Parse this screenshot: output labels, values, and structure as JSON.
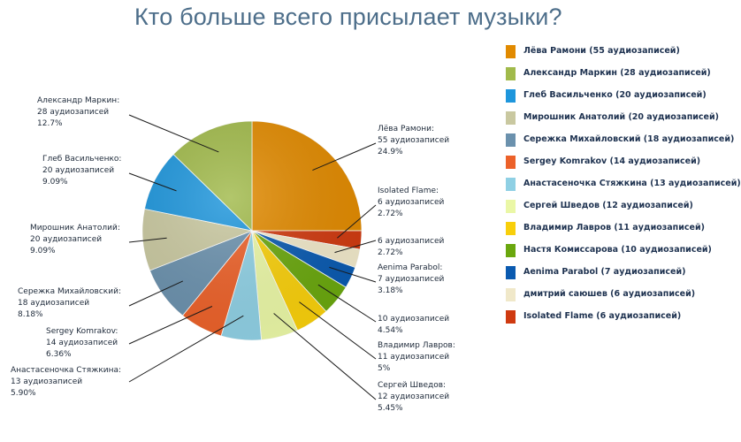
{
  "chart_data": {
    "type": "pie",
    "title": "Кто больше всего присылает музыки?",
    "slices": [
      {
        "name": "Лёва Рамони",
        "value": 55,
        "percent": "24.9%",
        "color": "#e18a00",
        "legend": "Лёва Рамони (55 аудиозаписей)",
        "callout": [
          "Лёва Рамони:",
          "55 аудиозаписей",
          "24.9%"
        ]
      },
      {
        "name": "Isolated Flame",
        "value": 6,
        "percent": "2.72%",
        "color": "#cf3a10",
        "legend": "Isolated Flame (6 аудиозаписей)",
        "callout": [
          "Isolated Flame:",
          "6 аудиозаписей",
          "2.72%"
        ]
      },
      {
        "name": "дмитрий саюшев",
        "value": 6,
        "percent": "2.72%",
        "color": "#f0e8c9",
        "legend": "дмитрий саюшев (6 аудиозаписей)",
        "callout": [
          "",
          "6 аудиозаписей",
          "2.72%"
        ]
      },
      {
        "name": "Aenima Parabol",
        "value": 7,
        "percent": "3.18%",
        "color": "#0a5ab0",
        "legend": "Aenima Parabol (7 аудиозаписей)",
        "callout": [
          "Aenima Parabol:",
          "7 аудиозаписей",
          "3.18%"
        ]
      },
      {
        "name": "Настя Комиссарова",
        "value": 10,
        "percent": "4.54%",
        "color": "#6aa70e",
        "legend": "Настя Комиссарова (10 аудиозаписей)",
        "callout": [
          "",
          "10 аудиозаписей",
          "4.54%"
        ]
      },
      {
        "name": "Владимир Лавров",
        "value": 11,
        "percent": "5%",
        "color": "#f8cf0b",
        "legend": "Владимир Лавров (11 аудиозаписей)",
        "callout": [
          "Владимир Лавров:",
          "11 аудиозаписей",
          "5%"
        ]
      },
      {
        "name": "Сергей Шведов",
        "value": 12,
        "percent": "5.45%",
        "color": "#eaf7a6",
        "legend": "Сергей Шведов (12 аудиозаписей)",
        "callout": [
          "Сергей Шведов:",
          "12 аудиозаписей",
          "5.45%"
        ]
      },
      {
        "name": "Анастасеночка Стяжкина",
        "value": 13,
        "percent": "5.90%",
        "color": "#8fd0e4",
        "legend": "Анастасеночка Стяжкина (13 аудиозаписей)",
        "callout": [
          "Анастасеночка Стяжкина:",
          "13 аудиозаписей",
          "5.90%"
        ]
      },
      {
        "name": "Sergey Komrakov",
        "value": 14,
        "percent": "6.36%",
        "color": "#ec6129",
        "legend": "Sergey Komrakov (14 аудиозаписей)",
        "callout": [
          "Sergey Komrakov:",
          "14 аудиозаписей",
          "6.36%"
        ]
      },
      {
        "name": "Сережка Михайловский",
        "value": 18,
        "percent": "8.18%",
        "color": "#6b91ad",
        "legend": "Сережка Михайловский (18 аудиозаписей)",
        "callout": [
          "Сережка Михайловский:",
          "18 аудиозаписей",
          "8.18%"
        ]
      },
      {
        "name": "Мирошник Анатолий",
        "value": 20,
        "percent": "9.09%",
        "color": "#c9c8a0",
        "legend": "Мирошник Анатолий (20 аудиозаписей)",
        "callout": [
          "Мирошник Анатолий:",
          "20 аудиозаписей",
          "9.09%"
        ]
      },
      {
        "name": "Глеб Васильченко",
        "value": 20,
        "percent": "9.09%",
        "color": "#1e96dc",
        "legend": "Глеб Васильченко (20 аудиозаписей)",
        "callout": [
          "Глеб Васильченко:",
          "20 аудиозаписей",
          "9.09%"
        ]
      },
      {
        "name": "Александр Маркин",
        "value": 28,
        "percent": "12.7%",
        "color": "#a1ba4b",
        "legend": "Александр Маркин (28 аудиозаписей)",
        "callout": [
          "Александр Маркин:",
          "28 аудиозаписей",
          "12.7%"
        ]
      }
    ],
    "legend_order": [
      "Лёва Рамони",
      "Александр Маркин",
      "Глеб Васильченко",
      "Мирошник Анатолий",
      "Сережка Михайловский",
      "Sergey Komrakov",
      "Анастасеночка Стяжкина",
      "Сергей Шведов",
      "Владимир Лавров",
      "Настя Комиссарова",
      "Aenima Parabol",
      "дмитрий саюшев",
      "Isolated Flame"
    ],
    "legend_position": "right"
  }
}
